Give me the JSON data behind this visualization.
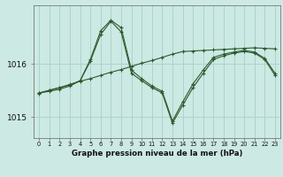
{
  "title": "Graphe pression niveau de la mer (hPa)",
  "background_color": "#cce9e3",
  "grid_color": "#aad4cc",
  "line_color": "#2d5a2d",
  "x_labels": [
    "0",
    "1",
    "2",
    "3",
    "4",
    "5",
    "6",
    "7",
    "8",
    "9",
    "10",
    "11",
    "12",
    "13",
    "14",
    "15",
    "16",
    "17",
    "18",
    "19",
    "20",
    "21",
    "22",
    "23"
  ],
  "hours": [
    0,
    1,
    2,
    3,
    4,
    5,
    6,
    7,
    8,
    9,
    10,
    11,
    12,
    13,
    14,
    15,
    16,
    17,
    18,
    19,
    20,
    21,
    22,
    23
  ],
  "y_ticks": [
    1015,
    1016
  ],
  "ylim": [
    1014.6,
    1017.1
  ],
  "series_main": [
    1015.45,
    1015.48,
    1015.52,
    1015.58,
    1015.68,
    1016.08,
    1016.62,
    1016.82,
    1016.68,
    1015.88,
    1015.72,
    1015.58,
    1015.48,
    1014.92,
    1015.28,
    1015.62,
    1015.88,
    1016.12,
    1016.18,
    1016.22,
    1016.25,
    1016.22,
    1016.1,
    1015.82
  ],
  "series_upper": [
    1015.45,
    1015.5,
    1015.55,
    1015.6,
    1015.68,
    1016.05,
    1016.55,
    1016.8,
    1016.6,
    1015.82,
    1015.68,
    1015.55,
    1015.45,
    1014.88,
    1015.22,
    1015.55,
    1015.82,
    1016.08,
    1016.15,
    1016.2,
    1016.23,
    1016.2,
    1016.08,
    1015.78
  ],
  "series_trend": [
    1015.44,
    1015.5,
    1015.55,
    1015.61,
    1015.67,
    1015.72,
    1015.78,
    1015.84,
    1015.89,
    1015.95,
    1016.01,
    1016.06,
    1016.12,
    1016.18,
    1016.23,
    1016.24,
    1016.25,
    1016.26,
    1016.27,
    1016.28,
    1016.29,
    1016.3,
    1016.29,
    1016.28
  ]
}
